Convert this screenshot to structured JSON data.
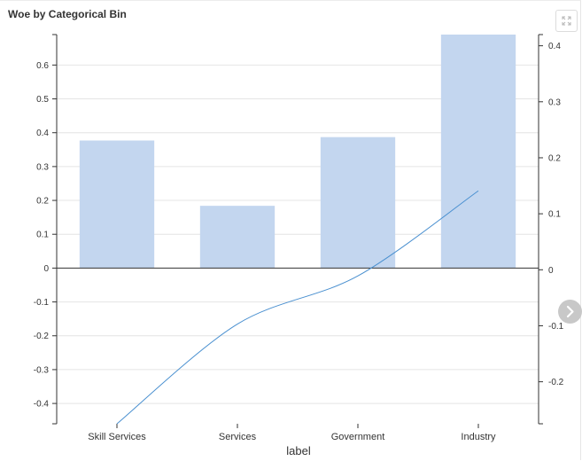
{
  "header": {
    "title": "Woe by Categorical Bin"
  },
  "icons": {
    "expand": "expand-icon",
    "next": "chevron-right-icon"
  },
  "chart_data": {
    "type": "bar",
    "title": "Woe by Categorical Bin",
    "categories": [
      "Skill Services",
      "Services",
      "Government",
      "Industry"
    ],
    "xlabel": "label",
    "ylabel": "",
    "ylim": [
      -0.46,
      0.69
    ],
    "y_ticks": [
      -0.4,
      -0.3,
      -0.2,
      -0.1,
      0,
      0.1,
      0.2,
      0.3,
      0.4,
      0.5,
      0.6
    ],
    "y_tick_labels": [
      "-0.4",
      "-0.3",
      "-0.2",
      "-0.1",
      "0",
      "0.1",
      "0.2",
      "0.3",
      "0.4",
      "0.5",
      "0.6"
    ],
    "y2lim": [
      -0.275,
      0.42
    ],
    "y2_ticks": [
      -0.2,
      -0.1,
      0,
      0.1,
      0.2,
      0.3,
      0.4
    ],
    "y2_tick_labels": [
      "-0.2",
      "-0.1",
      "0",
      "0.1",
      "0.2",
      "0.3",
      "0.4"
    ],
    "grid": true,
    "bar_color": "#c3d6ef",
    "line_color": "#4a90d0",
    "series": [
      {
        "type": "bar",
        "axis": "left",
        "values": [
          0.377,
          0.184,
          0.387,
          0.69
        ]
      },
      {
        "type": "line",
        "axis": "right",
        "values": [
          -0.275,
          -0.097,
          -0.011,
          0.141
        ]
      }
    ]
  }
}
